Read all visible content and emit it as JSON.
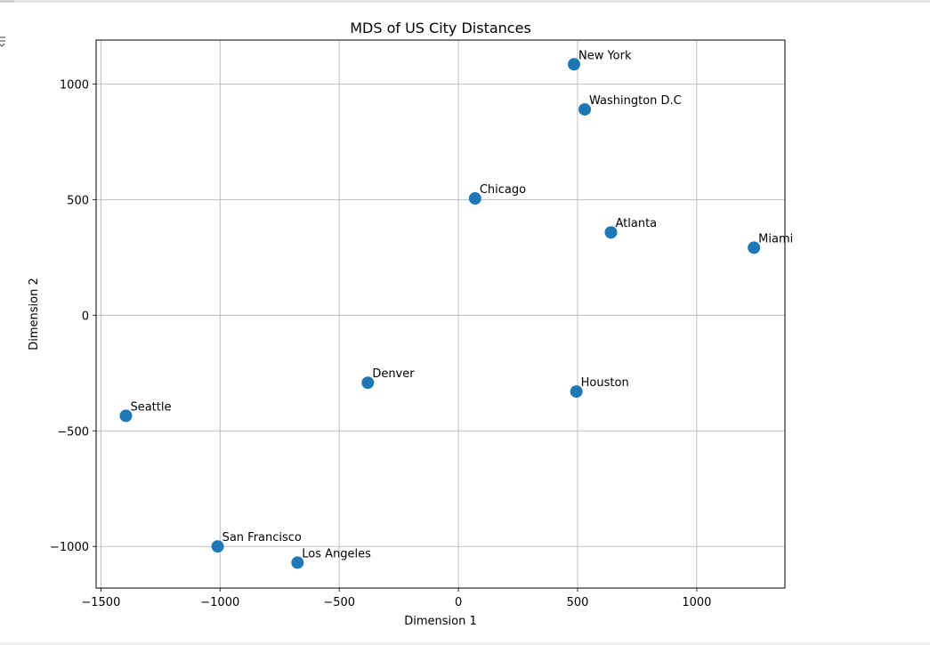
{
  "chart_data": {
    "type": "scatter",
    "title": "MDS of US City Distances",
    "xlabel": "Dimension 1",
    "ylabel": "Dimension 2",
    "xlim": [
      -1520,
      1370
    ],
    "ylim": [
      -1180,
      1190
    ],
    "xticks": [
      -1500,
      -1000,
      -500,
      0,
      500,
      1000
    ],
    "xtick_labels": [
      "−1500",
      "−1000",
      "−500",
      "0",
      "500",
      "1000"
    ],
    "yticks": [
      -1000,
      -500,
      0,
      500,
      1000
    ],
    "ytick_labels": [
      "−1000",
      "−500",
      "0",
      "500",
      "1000"
    ],
    "grid": true,
    "marker_color": "#1f77b4",
    "points": [
      {
        "label": "New York",
        "x": 485,
        "y": 1085
      },
      {
        "label": "Washington D.C",
        "x": 530,
        "y": 890
      },
      {
        "label": "Chicago",
        "x": 70,
        "y": 505
      },
      {
        "label": "Atlanta",
        "x": 640,
        "y": 358
      },
      {
        "label": "Miami",
        "x": 1240,
        "y": 292
      },
      {
        "label": "Denver",
        "x": -380,
        "y": -292
      },
      {
        "label": "Houston",
        "x": 495,
        "y": -330
      },
      {
        "label": "Seattle",
        "x": -1395,
        "y": -435
      },
      {
        "label": "San Francisco",
        "x": -1010,
        "y": -1000
      },
      {
        "label": "Los Angeles",
        "x": -675,
        "y": -1070
      }
    ]
  }
}
